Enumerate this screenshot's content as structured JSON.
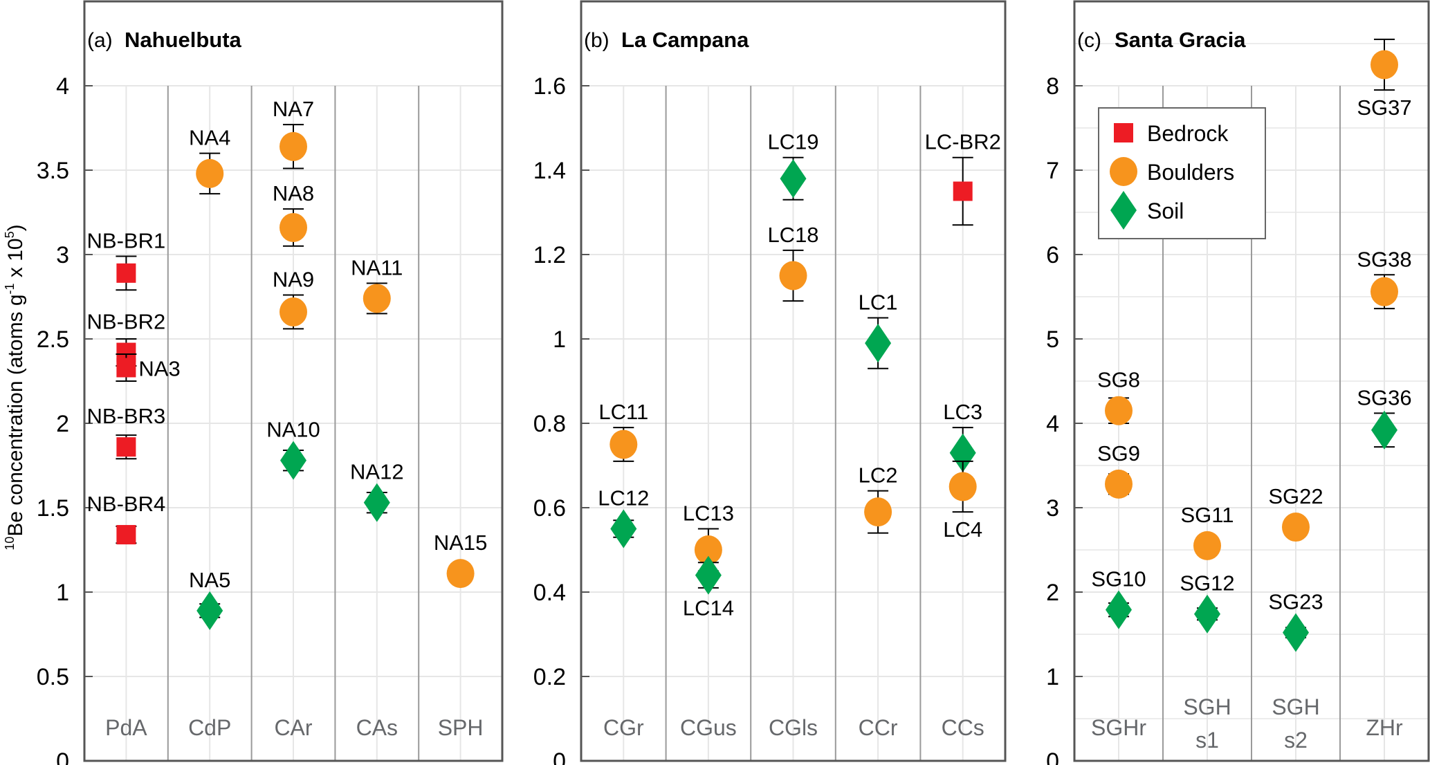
{
  "chart_data": {
    "type": "scatter",
    "ylabel": "10Be concentration (atoms g-1 x 10^5)",
    "ylabel_parts": {
      "sup1": "10",
      "main": "Be concentration (atoms g",
      "sup2": "-1",
      "mid": " x 10",
      "sup3": "5",
      "end": ")"
    },
    "legend": {
      "placement": "upper-left of panel (c)",
      "entries": [
        {
          "name": "Bedrock",
          "marker": "square",
          "color": "#ed1c24"
        },
        {
          "name": "Boulders",
          "marker": "circle",
          "color": "#f7941d"
        },
        {
          "name": "Soil",
          "marker": "diamond",
          "color": "#00a651"
        }
      ]
    },
    "panels": [
      {
        "letter": "(a)",
        "title": "Nahuelbuta",
        "categories": [
          "PdA",
          "CdP",
          "CAr",
          "CAs",
          "SPH"
        ],
        "ylim": [
          0,
          4.5
        ],
        "yticks": [
          0,
          0.5,
          1,
          1.5,
          2,
          2.5,
          3,
          3.5,
          4
        ],
        "ytick_labels": [
          "0",
          "0.5",
          "1",
          "1.5",
          "2",
          "2.5",
          "3",
          "3.5",
          "4"
        ],
        "minor_grid": [],
        "points": [
          {
            "label": "NB-BR1",
            "category": "PdA",
            "type": "Bedrock",
            "value": 2.89,
            "err": 0.1,
            "label_pos": "above"
          },
          {
            "label": "NB-BR2",
            "category": "PdA",
            "type": "Bedrock",
            "value": 2.42,
            "err": 0.08,
            "label_pos": "above"
          },
          {
            "label": "NA3",
            "category": "PdA",
            "type": "Bedrock",
            "value": 2.33,
            "err": 0.08,
            "label_pos": "right"
          },
          {
            "label": "NB-BR3",
            "category": "PdA",
            "type": "Bedrock",
            "value": 1.86,
            "err": 0.07,
            "label_pos": "above"
          },
          {
            "label": "NB-BR4",
            "category": "PdA",
            "type": "Bedrock",
            "value": 1.34,
            "err": 0.05,
            "label_pos": "above"
          },
          {
            "label": "NA4",
            "category": "CdP",
            "type": "Boulders",
            "value": 3.48,
            "err": 0.12,
            "label_pos": "above"
          },
          {
            "label": "NA5",
            "category": "CdP",
            "type": "Soil",
            "value": 0.89,
            "err": 0.04,
            "label_pos": "above"
          },
          {
            "label": "NA7",
            "category": "CAr",
            "type": "Boulders",
            "value": 3.64,
            "err": 0.13,
            "label_pos": "above"
          },
          {
            "label": "NA8",
            "category": "CAr",
            "type": "Boulders",
            "value": 3.16,
            "err": 0.11,
            "label_pos": "above"
          },
          {
            "label": "NA9",
            "category": "CAr",
            "type": "Boulders",
            "value": 2.66,
            "err": 0.1,
            "label_pos": "above"
          },
          {
            "label": "NA10",
            "category": "CAr",
            "type": "Soil",
            "value": 1.78,
            "err": 0.06,
            "label_pos": "above"
          },
          {
            "label": "NA11",
            "category": "CAs",
            "type": "Boulders",
            "value": 2.74,
            "err": 0.09,
            "label_pos": "above"
          },
          {
            "label": "NA12",
            "category": "CAs",
            "type": "Soil",
            "value": 1.53,
            "err": 0.06,
            "label_pos": "above"
          },
          {
            "label": "NA15",
            "category": "SPH",
            "type": "Boulders",
            "value": 1.11,
            "err": 0,
            "label_pos": "above"
          }
        ]
      },
      {
        "letter": "(b)",
        "title": "La Campana",
        "categories": [
          "CGr",
          "CGus",
          "CGls",
          "CCr",
          "CCs"
        ],
        "ylim": [
          0,
          1.8
        ],
        "yticks": [
          0,
          0.2,
          0.4,
          0.6,
          0.8,
          1,
          1.2,
          1.4,
          1.6
        ],
        "ytick_labels": [
          "0",
          "0.2",
          "0.4",
          "0.6",
          "0.8",
          "1",
          "1.2",
          "1.4",
          "1.6"
        ],
        "minor_grid": [],
        "points": [
          {
            "label": "LC11",
            "category": "CGr",
            "type": "Boulders",
            "value": 0.75,
            "err": 0.04,
            "label_pos": "above"
          },
          {
            "label": "LC12",
            "category": "CGr",
            "type": "Soil",
            "value": 0.55,
            "err": 0.02,
            "label_pos": "above"
          },
          {
            "label": "LC13",
            "category": "CGus",
            "type": "Boulders",
            "value": 0.5,
            "err": 0.05,
            "label_pos": "above"
          },
          {
            "label": "LC14",
            "category": "CGus",
            "type": "Soil",
            "value": 0.44,
            "err": 0.03,
            "label_pos": "below"
          },
          {
            "label": "LC19",
            "category": "CGls",
            "type": "Soil",
            "value": 1.38,
            "err": 0.05,
            "label_pos": "above"
          },
          {
            "label": "LC18",
            "category": "CGls",
            "type": "Boulders",
            "value": 1.15,
            "err": 0.06,
            "label_pos": "above"
          },
          {
            "label": "LC1",
            "category": "CCr",
            "type": "Soil",
            "value": 0.99,
            "err": 0.06,
            "label_pos": "above"
          },
          {
            "label": "LC2",
            "category": "CCr",
            "type": "Boulders",
            "value": 0.59,
            "err": 0.05,
            "label_pos": "above"
          },
          {
            "label": "LC-BR2",
            "category": "CCs",
            "type": "Bedrock",
            "value": 1.35,
            "err": 0.08,
            "label_pos": "above"
          },
          {
            "label": "LC3",
            "category": "CCs",
            "type": "Soil",
            "value": 0.73,
            "err": 0.06,
            "label_pos": "above"
          },
          {
            "label": "LC4",
            "category": "CCs",
            "type": "Boulders",
            "value": 0.65,
            "err": 0.06,
            "label_pos": "below"
          }
        ]
      },
      {
        "letter": "(c)",
        "title": "Santa Gracia",
        "categories": [
          "SGHr",
          "SGH s1",
          "SGH s2",
          "ZHr"
        ],
        "categories_lines": [
          [
            "SGHr"
          ],
          [
            "SGH",
            "s1"
          ],
          [
            "SGH",
            "s2"
          ],
          [
            "ZHr"
          ]
        ],
        "ylim": [
          0,
          9
        ],
        "yticks": [
          0,
          1,
          2,
          3,
          4,
          5,
          6,
          7,
          8
        ],
        "ytick_labels": [
          "0",
          "1",
          "2",
          "3",
          "4",
          "5",
          "6",
          "7",
          "8"
        ],
        "minor_grid": [
          0.5,
          1.5,
          2.5,
          3.5,
          4.5,
          5.5,
          6.5,
          7.5,
          8.5
        ],
        "points": [
          {
            "label": "SG8",
            "category": "SGHr",
            "type": "Boulders",
            "value": 4.15,
            "err": 0.15,
            "label_pos": "above"
          },
          {
            "label": "SG9",
            "category": "SGHr",
            "type": "Boulders",
            "value": 3.28,
            "err": 0.12,
            "label_pos": "above"
          },
          {
            "label": "SG10",
            "category": "SGHr",
            "type": "Soil",
            "value": 1.79,
            "err": 0.08,
            "label_pos": "above"
          },
          {
            "label": "SG11",
            "category": "SGH s1",
            "type": "Boulders",
            "value": 2.55,
            "err": 0.05,
            "label_pos": "above"
          },
          {
            "label": "SG12",
            "category": "SGH s1",
            "type": "Soil",
            "value": 1.74,
            "err": 0.07,
            "label_pos": "above"
          },
          {
            "label": "SG22",
            "category": "SGH s2",
            "type": "Boulders",
            "value": 2.77,
            "err": 0.07,
            "label_pos": "above"
          },
          {
            "label": "SG23",
            "category": "SGH s2",
            "type": "Soil",
            "value": 1.52,
            "err": 0.06,
            "label_pos": "above"
          },
          {
            "label": "SG37",
            "category": "ZHr",
            "type": "Boulders",
            "value": 8.25,
            "err": 0.3,
            "label_pos": "below"
          },
          {
            "label": "SG38",
            "category": "ZHr",
            "type": "Boulders",
            "value": 5.56,
            "err": 0.2,
            "label_pos": "above"
          },
          {
            "label": "SG36",
            "category": "ZHr",
            "type": "Soil",
            "value": 3.92,
            "err": 0.2,
            "label_pos": "above"
          }
        ]
      }
    ]
  }
}
